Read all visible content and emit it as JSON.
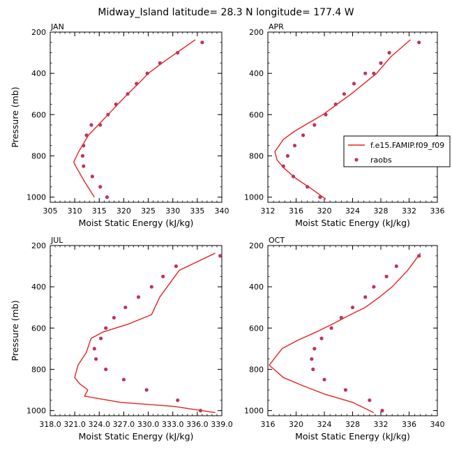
{
  "title": "Midway_Island  latitude= 28.3 N longitude= 177.4 W",
  "legend": {
    "placement": "right of APR panel",
    "model_label": "f.e15.FAMIP.f09_f09",
    "obs_label": "raobs"
  },
  "colors": {
    "model_line": "#e8201e",
    "obs_marker": "#c0335d"
  },
  "chart_data": [
    {
      "type": "line",
      "panel": "JAN",
      "xlabel": "Moist Static Energy (kJ/kg)",
      "ylabel": "Pressure (mb)",
      "xlim": [
        305,
        340
      ],
      "ylim": [
        1025,
        200
      ],
      "y_reversed": true,
      "xticks": [
        305,
        310,
        315,
        320,
        325,
        330,
        335,
        340
      ],
      "xticklabels": [
        "305",
        "310",
        "315",
        "320",
        "325",
        "330",
        "335",
        "340"
      ],
      "yticks": [
        200,
        400,
        600,
        800,
        1000
      ],
      "yticklabels": [
        "200",
        "400",
        "600",
        "800",
        "1000"
      ],
      "series": [
        {
          "name": "f.e15.FAMIP.f09_f09",
          "kind": "line",
          "x": [
            314.0,
            312.0,
            310.2,
            309.8,
            310.8,
            312.8,
            314.8,
            316.8,
            318.8,
            320.8,
            323.0,
            325.0,
            327.8,
            330.8,
            334.6
          ],
          "y": [
            1000,
            925,
            850,
            830,
            780,
            700,
            650,
            600,
            550,
            500,
            450,
            400,
            350,
            300,
            237
          ]
        },
        {
          "name": "raobs",
          "kind": "scatter",
          "x": [
            316.6,
            315.2,
            313.6,
            311.8,
            311.6,
            311.8,
            312.4,
            313.4,
            315.2,
            316.8,
            318.4,
            320.8,
            322.6,
            324.8,
            327.4,
            331.0,
            336.0
          ],
          "y": [
            1000,
            950,
            900,
            850,
            800,
            750,
            700,
            650,
            650,
            600,
            550,
            500,
            450,
            400,
            350,
            300,
            250
          ]
        }
      ]
    },
    {
      "type": "line",
      "panel": "APR",
      "xlabel": "Moist Static Energy (kJ/kg)",
      "ylabel": "",
      "xlim": [
        312,
        336
      ],
      "ylim": [
        1025,
        200
      ],
      "y_reversed": true,
      "xticks": [
        312,
        316,
        320,
        324,
        328,
        332,
        336
      ],
      "xticklabels": [
        "312",
        "316",
        "320",
        "324",
        "328",
        "332",
        "336"
      ],
      "yticks": [
        200,
        400,
        600,
        800,
        1000
      ],
      "yticklabels": [
        "200",
        "400",
        "600",
        "800",
        "1000"
      ],
      "series": [
        {
          "name": "f.e15.FAMIP.f09_f09",
          "kind": "line",
          "x": [
            320.2,
            318.2,
            316.0,
            314.3,
            313.3,
            313.0,
            314.2,
            315.8,
            317.8,
            319.8,
            321.8,
            323.8,
            325.6,
            327.4,
            329.4,
            332.2
          ],
          "y": [
            1010,
            960,
            910,
            860,
            820,
            780,
            720,
            680,
            640,
            600,
            550,
            500,
            450,
            400,
            320,
            237
          ]
        },
        {
          "name": "raobs",
          "kind": "scatter",
          "x": [
            319.4,
            317.6,
            315.6,
            314.2,
            314.8,
            315.8,
            317.0,
            318.6,
            320.2,
            321.6,
            322.8,
            324.2,
            325.8,
            327.0,
            328.0,
            329.2,
            333.4
          ],
          "y": [
            1000,
            950,
            900,
            850,
            800,
            750,
            700,
            650,
            600,
            550,
            500,
            450,
            400,
            400,
            350,
            300,
            250
          ]
        }
      ]
    },
    {
      "type": "line",
      "panel": "JUL",
      "xlabel": "Moist Static Energy (kJ/kg)",
      "ylabel": "Pressure (mb)",
      "xlim": [
        318,
        339
      ],
      "ylim": [
        1025,
        200
      ],
      "y_reversed": true,
      "xticks": [
        318,
        321,
        324,
        327,
        330,
        333,
        336,
        339
      ],
      "xticklabels": [
        "318.0",
        "321.0",
        "324.0",
        "327.0",
        "330.0",
        "333.0",
        "336.0",
        "339.0"
      ],
      "yticks": [
        200,
        400,
        600,
        800,
        1000
      ],
      "yticklabels": [
        "200",
        "400",
        "600",
        "800",
        "1000"
      ],
      "series": [
        {
          "name": "f.e15.FAMIP.f09_f09",
          "kind": "line",
          "x": [
            338.2,
            333.2,
            326.6,
            322.2,
            322.6,
            321.6,
            321.0,
            321.4,
            322.4,
            323.0,
            324.4,
            327.6,
            330.4,
            331.4,
            333.8,
            338.2
          ],
          "y": [
            1010,
            980,
            960,
            930,
            900,
            870,
            840,
            780,
            720,
            650,
            620,
            580,
            535,
            450,
            320,
            237
          ]
        },
        {
          "name": "raobs",
          "kind": "scatter",
          "x": [
            336.4,
            333.6,
            329.8,
            327.0,
            324.8,
            323.6,
            323.4,
            324.2,
            324.8,
            325.8,
            327.2,
            328.8,
            330.4,
            331.8,
            333.4,
            338.8
          ],
          "y": [
            1000,
            950,
            900,
            850,
            800,
            750,
            700,
            650,
            600,
            550,
            500,
            450,
            400,
            350,
            300,
            250
          ]
        }
      ]
    },
    {
      "type": "line",
      "panel": "OCT",
      "xlabel": "Moist Static Energy (kJ/kg)",
      "ylabel": "",
      "xlim": [
        316,
        340
      ],
      "ylim": [
        1025,
        200
      ],
      "y_reversed": true,
      "xticks": [
        316,
        320,
        324,
        328,
        332,
        336,
        340
      ],
      "xticklabels": [
        "316",
        "320",
        "324",
        "328",
        "332",
        "336",
        "340"
      ],
      "yticks": [
        200,
        400,
        600,
        800,
        1000
      ],
      "yticklabels": [
        "200",
        "400",
        "600",
        "800",
        "1000"
      ],
      "series": [
        {
          "name": "f.e15.FAMIP.f09_f09",
          "kind": "line",
          "x": [
            331.0,
            328.0,
            324.0,
            321.0,
            318.2,
            316.2,
            318.0,
            320.2,
            322.8,
            325.2,
            327.4,
            329.8,
            331.8,
            333.6,
            335.8,
            337.6
          ],
          "y": [
            1010,
            960,
            920,
            880,
            840,
            780,
            700,
            660,
            620,
            580,
            540,
            500,
            450,
            400,
            320,
            237
          ]
        },
        {
          "name": "raobs",
          "kind": "scatter",
          "x": [
            332.2,
            330.4,
            327.0,
            324.0,
            322.4,
            322.2,
            322.6,
            323.6,
            325.0,
            326.4,
            328.0,
            329.8,
            331.0,
            332.8,
            334.2,
            337.4
          ],
          "y": [
            1000,
            950,
            900,
            850,
            800,
            750,
            700,
            650,
            600,
            550,
            500,
            450,
            400,
            350,
            300,
            250
          ]
        }
      ]
    }
  ]
}
